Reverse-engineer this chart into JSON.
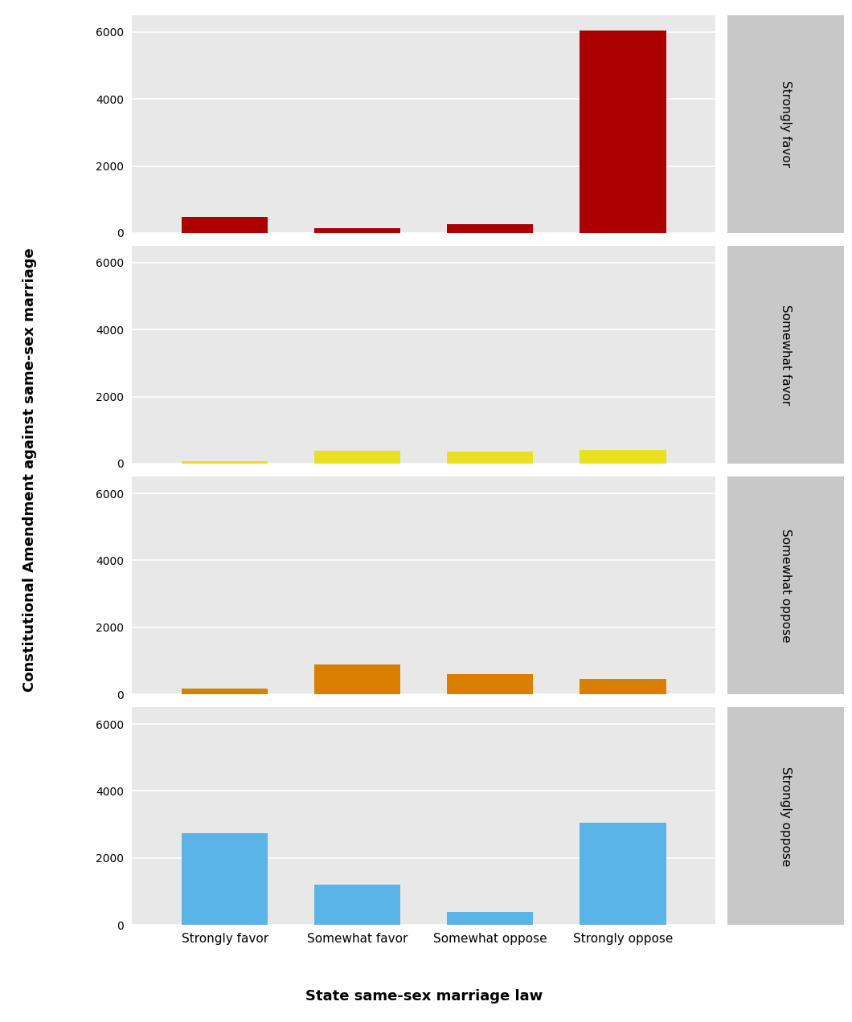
{
  "categories": [
    "Strongly favor",
    "Somewhat favor",
    "Somewhat oppose",
    "Strongly oppose"
  ],
  "panels": [
    {
      "label": "Strongly favor",
      "color": "#aa0000",
      "values": [
        480,
        150,
        250,
        6050
      ]
    },
    {
      "label": "Somewhat favor",
      "color": "#e8e020",
      "values": [
        80,
        380,
        350,
        400
      ]
    },
    {
      "label": "Somewhat oppose",
      "color": "#d98000",
      "values": [
        180,
        880,
        600,
        450
      ]
    },
    {
      "label": "Strongly oppose",
      "color": "#5ab4e5",
      "values": [
        2750,
        1200,
        380,
        3050
      ]
    }
  ],
  "ylim": [
    0,
    6500
  ],
  "yticks": [
    0,
    2000,
    4000,
    6000
  ],
  "xlabel": "State same-sex marriage law",
  "ylabel": "Constitutional Amendment against same-sex marriage",
  "panel_bg_color": "#e8e8e8",
  "strip_bg_color": "#c8c8c8",
  "fig_bg_color": "#ffffff",
  "grid_color": "#ffffff",
  "bar_width": 0.65,
  "panel_label_fontsize": 11,
  "axis_label_fontsize": 13,
  "tick_label_fontsize": 10,
  "xticklabel_fontsize": 11
}
